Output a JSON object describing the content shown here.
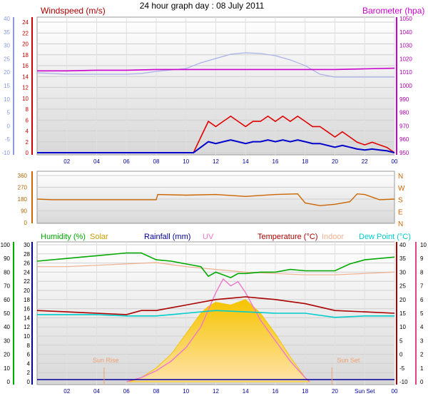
{
  "title": "24 hour graph day : 08 July 2011",
  "colors": {
    "windspeed": "#e00000",
    "windavg": "#0000cc",
    "gust_band": "#aab0e8",
    "barometer": "#cc00cc",
    "direction": "#cc6600",
    "humidity": "#00aa00",
    "solar": "#f5c400",
    "solar_fill": "#ffd98a",
    "rainfall": "#000099",
    "uv": "#ee77cc",
    "temperature": "#aa0000",
    "indoor": "#f0b090",
    "dewpoint": "#00cccc",
    "left_axis1": "#8899dd",
    "left_axis3": "#00aa00",
    "right_axis3": "#dd4488"
  },
  "chart_data": [
    {
      "type": "line",
      "panel": "wind-barometer",
      "xlabel_ticks": [
        "02",
        "04",
        "06",
        "08",
        "10",
        "12",
        "14",
        "16",
        "18",
        "20",
        "22",
        "00"
      ],
      "left_axis": {
        "label": "Windspeed (m/s)",
        "ticks": [
          "24",
          "22",
          "20",
          "18",
          "16",
          "14",
          "12",
          "10",
          "8",
          "6",
          "4",
          "2",
          "0"
        ],
        "ylim": [
          0,
          25
        ]
      },
      "outer_left_axis": {
        "ticks": [
          "40",
          "35",
          "30",
          "25",
          "20",
          "15",
          "10",
          "5",
          "0",
          "-5",
          "-10"
        ],
        "ylim": [
          -10,
          40
        ]
      },
      "right_axis": {
        "label": "Barometer (hpa)",
        "ticks": [
          "1050",
          "1040",
          "1030",
          "1020",
          "1010",
          "1000",
          "990",
          "980",
          "970",
          "960",
          "950"
        ],
        "ylim": [
          950,
          1050
        ]
      },
      "series": [
        {
          "name": "Windspeed (m/s)",
          "x": [
            0,
            10.5,
            11,
            11.5,
            12,
            12.5,
            13,
            13.5,
            14,
            14.5,
            15,
            15.5,
            16,
            16.5,
            17,
            17.5,
            18,
            18.5,
            19,
            19.5,
            20,
            20.5,
            21,
            21.5,
            22,
            22.5,
            23,
            23.5,
            24
          ],
          "values": [
            0,
            0,
            3,
            6,
            5,
            6,
            7,
            6,
            5,
            6,
            6,
            7,
            6,
            7,
            6,
            7,
            6,
            5,
            5,
            4,
            3,
            4,
            3,
            2,
            1.5,
            2,
            1.5,
            1,
            0
          ]
        },
        {
          "name": "Barometer (hpa)",
          "x": [
            0,
            2,
            4,
            6,
            8,
            10,
            12,
            14,
            16,
            18,
            20,
            22,
            24
          ],
          "values": [
            1011,
            1011,
            1011.5,
            1011.5,
            1012,
            1012,
            1012,
            1012,
            1012,
            1012,
            1012,
            1012.5,
            1013
          ]
        }
      ]
    },
    {
      "type": "line",
      "panel": "wind-direction",
      "left_axis": {
        "ticks": [
          "360",
          "270",
          "180",
          "90",
          "0"
        ],
        "ylim": [
          0,
          360
        ]
      },
      "right_axis": {
        "ticks": [
          "N",
          "W",
          "S",
          "E",
          "N"
        ]
      },
      "series": [
        {
          "x": [
            0,
            1,
            6,
            8,
            8.1,
            10,
            12,
            14,
            16,
            17.5,
            18,
            19,
            20,
            21,
            21.5,
            22,
            23,
            24
          ],
          "values": [
            180,
            175,
            175,
            175,
            215,
            210,
            215,
            200,
            215,
            220,
            150,
            130,
            140,
            160,
            220,
            215,
            175,
            180
          ]
        }
      ]
    },
    {
      "type": "area",
      "panel": "temperature-humidity-solar",
      "xlabel_ticks": [
        "02",
        "04",
        "06",
        "08",
        "10",
        "12",
        "14",
        "16",
        "18",
        "20",
        "Sun Set",
        "00"
      ],
      "legend": [
        "Humidity (%)",
        "Solar",
        "Rainfall (mm)",
        "UV",
        "Temperature (°C)",
        "Indoor",
        "Dew Point (°C)"
      ],
      "annotations": [
        "Sun Rise",
        "Sun Set"
      ],
      "left_axis_humidity": {
        "ticks": [
          "100",
          "90",
          "80",
          "70",
          "60",
          "50",
          "40",
          "30",
          "20",
          "10",
          "0"
        ],
        "ylim": [
          0,
          100
        ]
      },
      "left_axis_rain": {
        "ticks": [
          "30",
          "28",
          "26",
          "24",
          "22",
          "20",
          "18",
          "16",
          "14",
          "12",
          "10",
          "8",
          "6",
          "4",
          "2",
          "0"
        ],
        "ylim": [
          0,
          30
        ]
      },
      "right_axis_temp": {
        "ticks": [
          "40",
          "35",
          "30",
          "25",
          "20",
          "15",
          "10",
          "5",
          "0",
          "-5",
          "-10"
        ],
        "ylim": [
          -10,
          40
        ]
      },
      "right_axis_uv": {
        "ticks": [
          "10",
          "9",
          "8",
          "7",
          "6",
          "5",
          "4",
          "3",
          "2",
          "1",
          "0"
        ],
        "ylim": [
          0,
          10
        ]
      },
      "series": [
        {
          "name": "Humidity (%)",
          "x": [
            0,
            2,
            4,
            6,
            7,
            8,
            9,
            10,
            11,
            11.5,
            12,
            13,
            13.5,
            14,
            15,
            16,
            17,
            18,
            19,
            20,
            21,
            22,
            23,
            24
          ],
          "values": [
            88,
            90,
            92,
            94,
            94,
            89,
            88,
            86,
            84,
            77,
            80,
            76,
            79,
            79,
            80,
            80,
            82,
            81,
            81,
            81,
            86,
            89,
            90,
            91
          ]
        },
        {
          "name": "Temperature (°C)",
          "x": [
            0,
            2,
            4,
            6,
            7,
            8,
            10,
            12,
            13,
            14,
            15,
            16,
            18,
            20,
            22,
            24
          ],
          "values": [
            16,
            15.5,
            15,
            14.5,
            16,
            16,
            18,
            20,
            20.5,
            21,
            20.5,
            20,
            18.5,
            16,
            15.5,
            15
          ]
        },
        {
          "name": "Indoor",
          "x": [
            0,
            2,
            4,
            6,
            8,
            10,
            12,
            14,
            16,
            18,
            20,
            22,
            24
          ],
          "values": [
            32,
            32,
            32.5,
            33,
            33.5,
            32,
            31,
            30,
            29.5,
            29,
            29,
            29.5,
            30
          ]
        },
        {
          "name": "Dew Point (°C)",
          "x": [
            0,
            2,
            4,
            6,
            8,
            10,
            12,
            14,
            16,
            18,
            20,
            22,
            24
          ],
          "values": [
            14.5,
            14.5,
            14.5,
            14,
            14,
            15,
            16,
            15.5,
            15,
            15,
            13.5,
            14,
            14
          ]
        },
        {
          "name": "Solar",
          "x": [
            6,
            6.5,
            7,
            8,
            9,
            10,
            11,
            11.5,
            12,
            13,
            14,
            15,
            16,
            17,
            18,
            18.3
          ],
          "values": [
            0,
            1,
            3,
            10,
            20,
            35,
            50,
            55,
            58,
            56,
            60,
            50,
            35,
            18,
            3,
            0
          ]
        },
        {
          "name": "UV",
          "x": [
            6,
            7,
            8,
            9,
            10,
            11,
            12,
            12.5,
            13,
            13.5,
            14,
            15,
            16,
            17,
            18,
            18.3
          ],
          "values": [
            0,
            0.3,
            0.8,
            1.5,
            2.5,
            4,
            6.5,
            7.5,
            7,
            7.3,
            6.5,
            4.5,
            3,
            1.5,
            0.3,
            0
          ]
        },
        {
          "name": "Rainfall (mm)",
          "x": [
            0,
            24
          ],
          "values": [
            0,
            0
          ]
        }
      ]
    }
  ]
}
